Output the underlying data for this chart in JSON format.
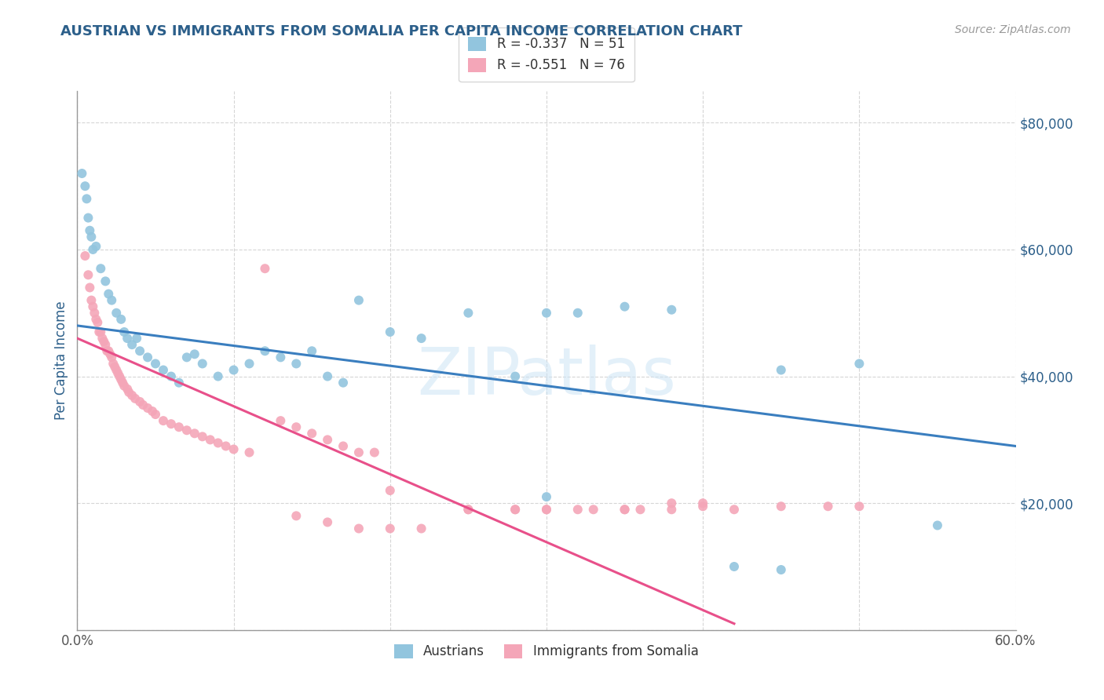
{
  "title": "AUSTRIAN VS IMMIGRANTS FROM SOMALIA PER CAPITA INCOME CORRELATION CHART",
  "source": "Source: ZipAtlas.com",
  "ylabel": "Per Capita Income",
  "xlim": [
    0.0,
    0.6
  ],
  "ylim": [
    0,
    85000
  ],
  "yticks": [
    0,
    20000,
    40000,
    60000,
    80000
  ],
  "ytick_labels": [
    "",
    "$20,000",
    "$40,000",
    "$60,000",
    "$80,000"
  ],
  "xticks": [
    0.0,
    0.1,
    0.2,
    0.3,
    0.4,
    0.5,
    0.6
  ],
  "xtick_labels": [
    "0.0%",
    "",
    "",
    "",
    "",
    "",
    "60.0%"
  ],
  "watermark": "ZIPatlas",
  "blue_color": "#92c5de",
  "pink_color": "#f4a6b8",
  "blue_line_color": "#3a7ebf",
  "pink_line_color": "#e8508a",
  "background_color": "#ffffff",
  "grid_color": "#cccccc",
  "title_color": "#2c5f8a",
  "axis_color": "#2c5f8a",
  "blue_scatter": [
    [
      0.003,
      72000
    ],
    [
      0.005,
      70000
    ],
    [
      0.006,
      68000
    ],
    [
      0.007,
      65000
    ],
    [
      0.008,
      63000
    ],
    [
      0.009,
      62000
    ],
    [
      0.01,
      60000
    ],
    [
      0.012,
      60500
    ],
    [
      0.015,
      57000
    ],
    [
      0.018,
      55000
    ],
    [
      0.02,
      53000
    ],
    [
      0.022,
      52000
    ],
    [
      0.025,
      50000
    ],
    [
      0.028,
      49000
    ],
    [
      0.03,
      47000
    ],
    [
      0.032,
      46000
    ],
    [
      0.035,
      45000
    ],
    [
      0.038,
      46000
    ],
    [
      0.04,
      44000
    ],
    [
      0.045,
      43000
    ],
    [
      0.05,
      42000
    ],
    [
      0.055,
      41000
    ],
    [
      0.06,
      40000
    ],
    [
      0.065,
      39000
    ],
    [
      0.07,
      43000
    ],
    [
      0.075,
      43500
    ],
    [
      0.08,
      42000
    ],
    [
      0.09,
      40000
    ],
    [
      0.1,
      41000
    ],
    [
      0.11,
      42000
    ],
    [
      0.12,
      44000
    ],
    [
      0.13,
      43000
    ],
    [
      0.14,
      42000
    ],
    [
      0.15,
      44000
    ],
    [
      0.16,
      40000
    ],
    [
      0.17,
      39000
    ],
    [
      0.18,
      52000
    ],
    [
      0.2,
      47000
    ],
    [
      0.22,
      46000
    ],
    [
      0.25,
      50000
    ],
    [
      0.28,
      40000
    ],
    [
      0.3,
      50000
    ],
    [
      0.32,
      50000
    ],
    [
      0.35,
      51000
    ],
    [
      0.38,
      50500
    ],
    [
      0.45,
      41000
    ],
    [
      0.5,
      42000
    ],
    [
      0.3,
      21000
    ],
    [
      0.42,
      10000
    ],
    [
      0.45,
      9500
    ],
    [
      0.55,
      16500
    ]
  ],
  "pink_scatter": [
    [
      0.005,
      59000
    ],
    [
      0.007,
      56000
    ],
    [
      0.008,
      54000
    ],
    [
      0.009,
      52000
    ],
    [
      0.01,
      51000
    ],
    [
      0.011,
      50000
    ],
    [
      0.012,
      49000
    ],
    [
      0.013,
      48500
    ],
    [
      0.014,
      47000
    ],
    [
      0.015,
      47000
    ],
    [
      0.016,
      46000
    ],
    [
      0.017,
      45500
    ],
    [
      0.018,
      45000
    ],
    [
      0.019,
      44000
    ],
    [
      0.02,
      44000
    ],
    [
      0.021,
      43500
    ],
    [
      0.022,
      43000
    ],
    [
      0.023,
      42000
    ],
    [
      0.024,
      41500
    ],
    [
      0.025,
      41000
    ],
    [
      0.026,
      40500
    ],
    [
      0.027,
      40000
    ],
    [
      0.028,
      39500
    ],
    [
      0.029,
      39000
    ],
    [
      0.03,
      38500
    ],
    [
      0.032,
      38000
    ],
    [
      0.033,
      37500
    ],
    [
      0.035,
      37000
    ],
    [
      0.037,
      36500
    ],
    [
      0.04,
      36000
    ],
    [
      0.042,
      35500
    ],
    [
      0.045,
      35000
    ],
    [
      0.048,
      34500
    ],
    [
      0.05,
      34000
    ],
    [
      0.055,
      33000
    ],
    [
      0.06,
      32500
    ],
    [
      0.065,
      32000
    ],
    [
      0.07,
      31500
    ],
    [
      0.075,
      31000
    ],
    [
      0.08,
      30500
    ],
    [
      0.085,
      30000
    ],
    [
      0.09,
      29500
    ],
    [
      0.095,
      29000
    ],
    [
      0.1,
      28500
    ],
    [
      0.11,
      28000
    ],
    [
      0.12,
      57000
    ],
    [
      0.13,
      33000
    ],
    [
      0.14,
      32000
    ],
    [
      0.15,
      31000
    ],
    [
      0.16,
      30000
    ],
    [
      0.17,
      29000
    ],
    [
      0.18,
      28000
    ],
    [
      0.19,
      28000
    ],
    [
      0.2,
      22000
    ],
    [
      0.14,
      18000
    ],
    [
      0.16,
      17000
    ],
    [
      0.18,
      16000
    ],
    [
      0.2,
      16000
    ],
    [
      0.22,
      16000
    ],
    [
      0.25,
      19000
    ],
    [
      0.28,
      19000
    ],
    [
      0.3,
      19000
    ],
    [
      0.32,
      19000
    ],
    [
      0.35,
      19000
    ],
    [
      0.38,
      20000
    ],
    [
      0.4,
      20000
    ],
    [
      0.45,
      19500
    ],
    [
      0.48,
      19500
    ],
    [
      0.5,
      19500
    ],
    [
      0.36,
      19000
    ],
    [
      0.42,
      19000
    ],
    [
      0.38,
      19000
    ],
    [
      0.4,
      19500
    ],
    [
      0.25,
      19000
    ],
    [
      0.28,
      19000
    ],
    [
      0.3,
      19000
    ],
    [
      0.33,
      19000
    ],
    [
      0.35,
      19000
    ]
  ],
  "blue_trendline_x": [
    0.0,
    0.6
  ],
  "blue_trendline_y": [
    48000,
    29000
  ],
  "pink_trendline_x": [
    0.0,
    0.42
  ],
  "pink_trendline_y": [
    46000,
    1000
  ]
}
